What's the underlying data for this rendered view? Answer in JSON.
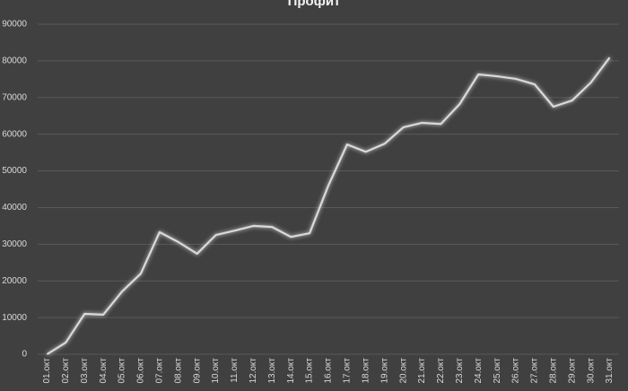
{
  "chart_data": {
    "type": "line",
    "title": "Профит",
    "categories": [
      "01.окт",
      "02.окт",
      "03.окт",
      "04.окт",
      "05.окт",
      "06.окт",
      "07.окт",
      "08.окт",
      "09.окт",
      "10.окт",
      "11.окт",
      "12.окт",
      "13.окт",
      "14.окт",
      "15.окт",
      "16.окт",
      "17.окт",
      "18.окт",
      "19.окт",
      "20.окт",
      "21.окт",
      "22.окт",
      "23.окт",
      "24.окт",
      "25.окт",
      "26.окт",
      "27.окт",
      "28.окт",
      "29.окт",
      "30.окт",
      "31.окт"
    ],
    "series": [
      {
        "color": "#d9d9d9",
        "values": [
          0,
          3200,
          11000,
          10800,
          17100,
          22000,
          33300,
          30600,
          27400,
          32500,
          33700,
          35000,
          34700,
          32000,
          33000,
          46000,
          57200,
          55200,
          57400,
          61900,
          63100,
          62800,
          68200,
          76300,
          75800,
          75100,
          73600,
          67500,
          69200,
          74100,
          80900
        ]
      }
    ],
    "ylim": [
      0,
      90000
    ],
    "yticks": [
      0,
      10000,
      20000,
      30000,
      40000,
      50000,
      60000,
      70000,
      80000,
      90000
    ],
    "grid": true
  }
}
